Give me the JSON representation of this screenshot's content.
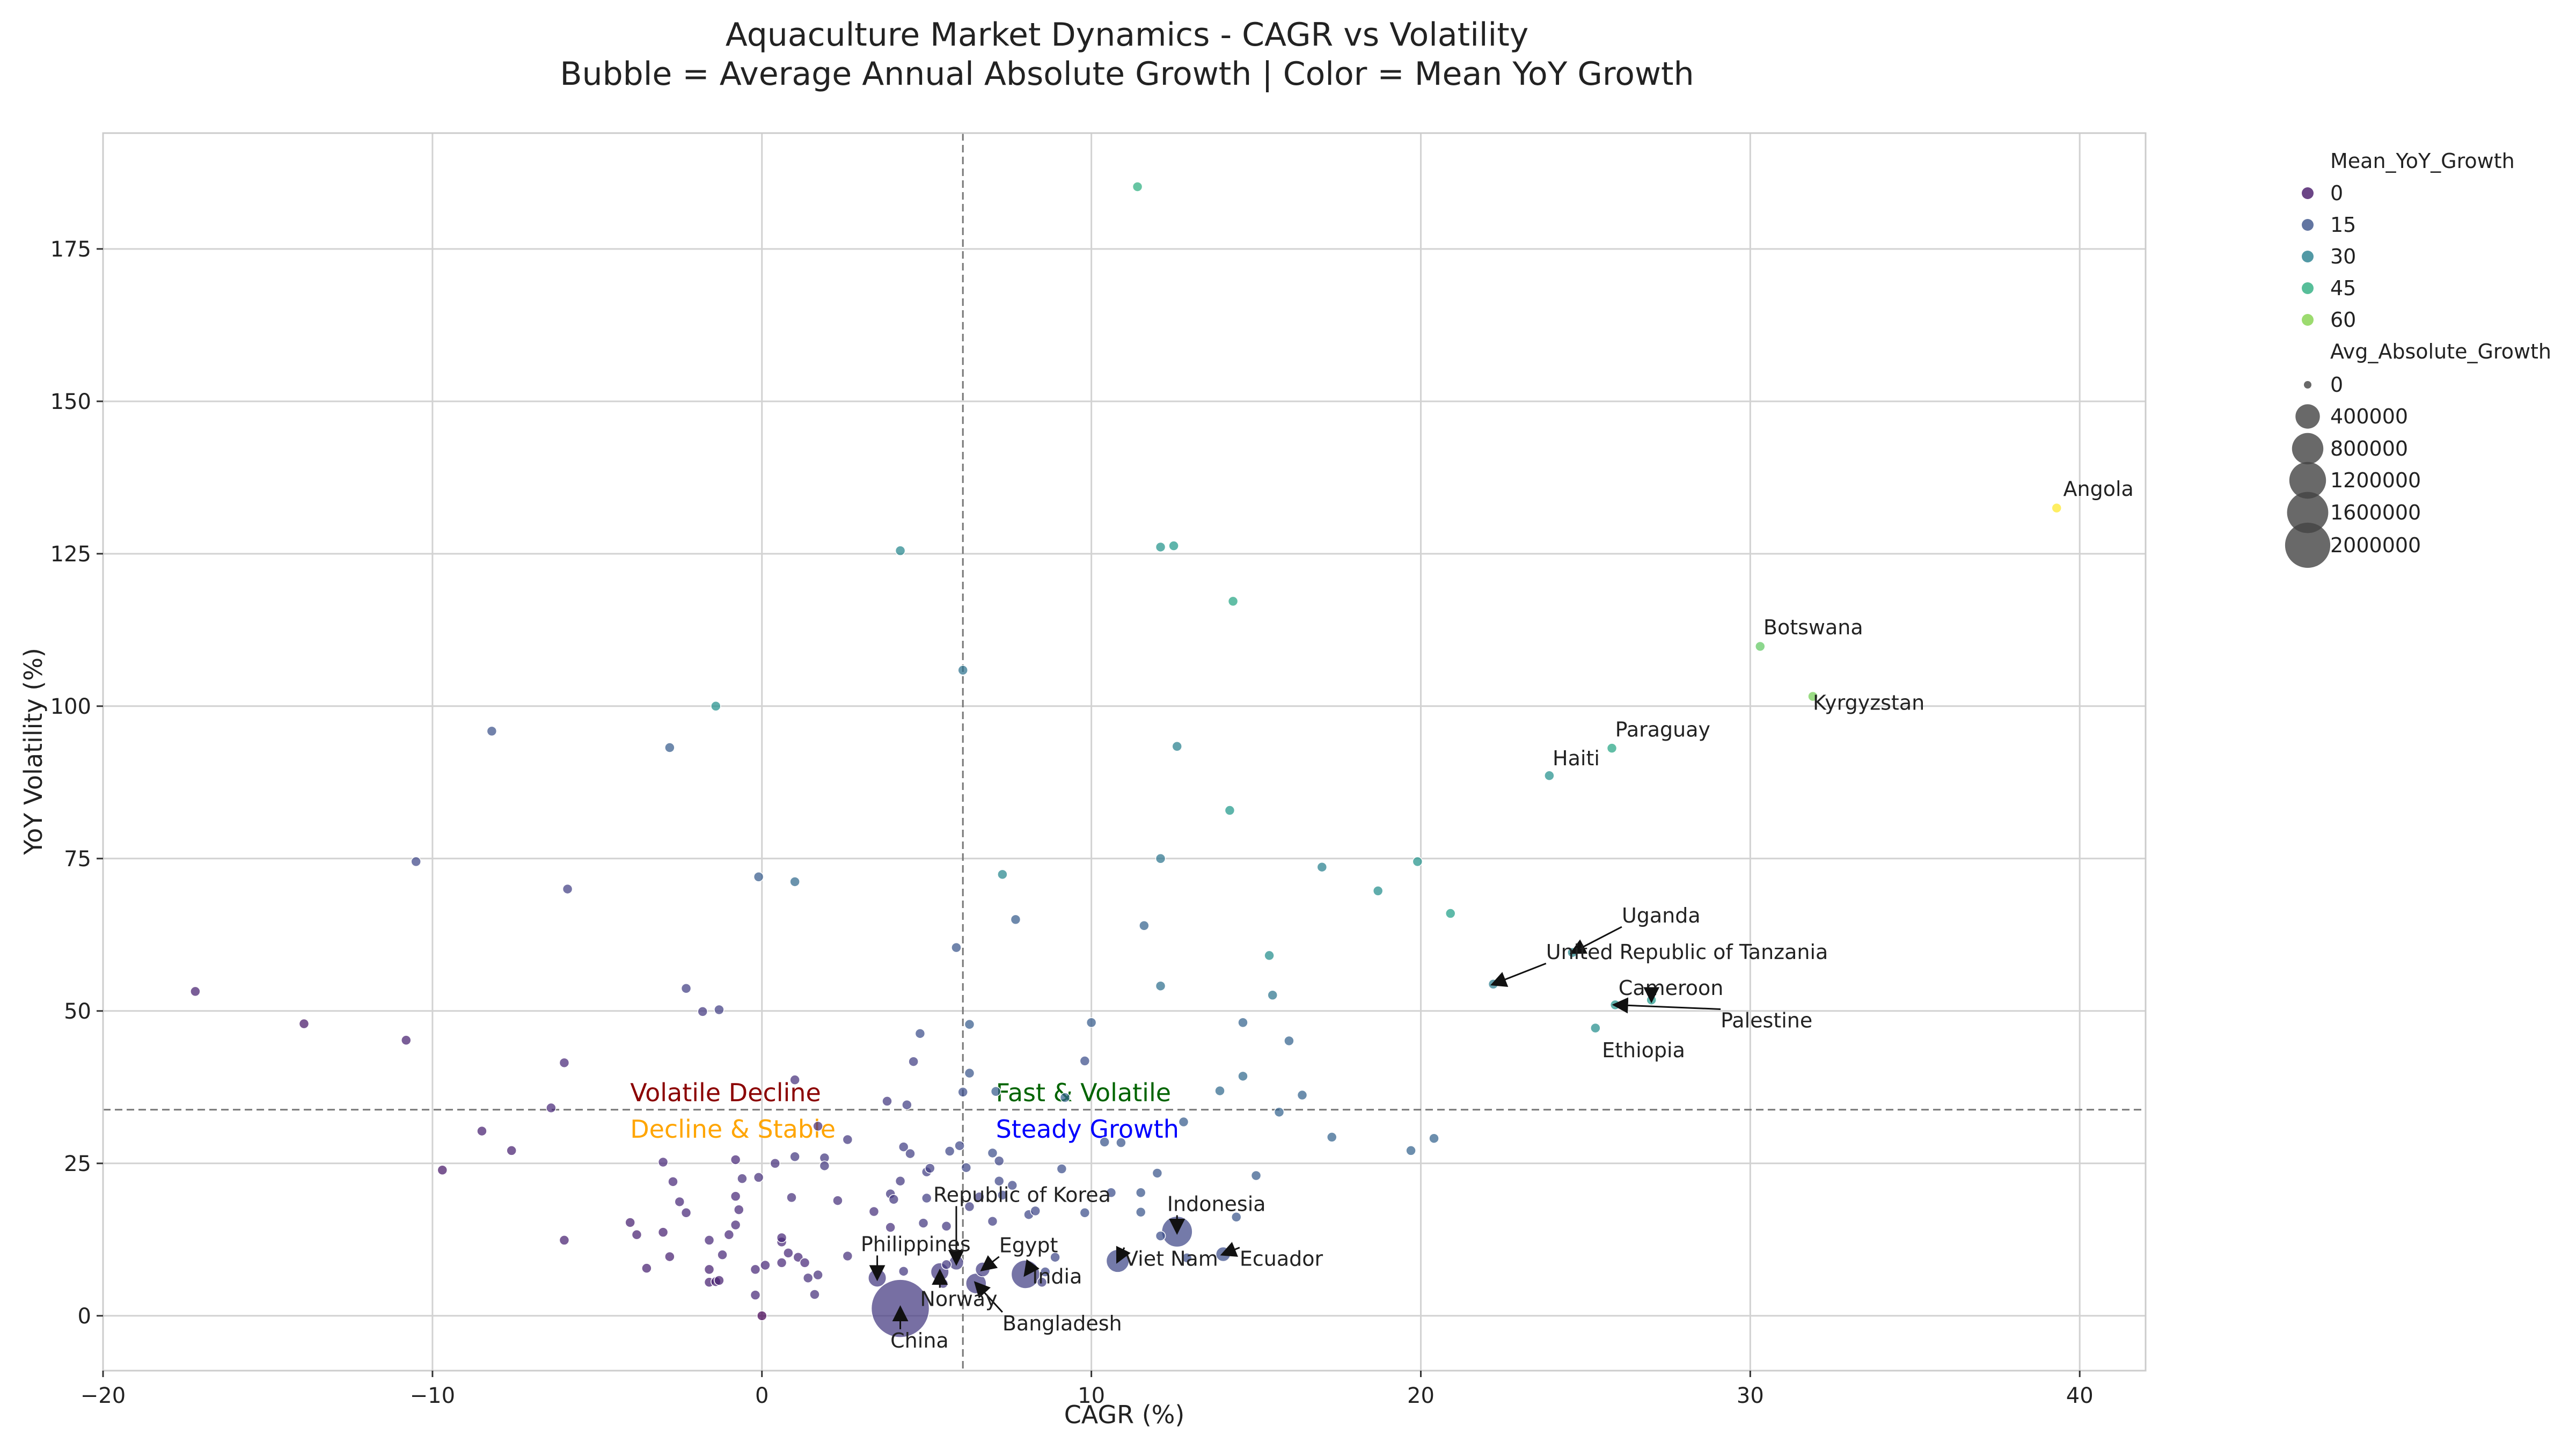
{
  "chart_data": {
    "type": "scatter",
    "title": "Aquaculture Market Dynamics - CAGR vs Volatility",
    "subtitle": "Bubble = Average Annual Absolute Growth | Color = Mean YoY Growth",
    "xlabel": "CAGR (%)",
    "ylabel": "YoY Volatility (%)",
    "xlim": [
      -20,
      42
    ],
    "ylim": [
      -9,
      194
    ],
    "xticks": [
      -20,
      -10,
      0,
      10,
      20,
      30,
      40
    ],
    "yticks": [
      0,
      25,
      50,
      75,
      100,
      125,
      150,
      175
    ],
    "grid": true,
    "reference_lines": {
      "x": 6.1,
      "y": 33.8
    },
    "colormap": "viridis",
    "color_range": [
      -5,
      75
    ],
    "legend": {
      "placement": "outside-right",
      "color_title": "Mean_YoY_Growth",
      "color_entries": [
        0,
        15,
        30,
        45,
        60
      ],
      "size_title": "Avg_Absolute_Growth",
      "size_entries": [
        0,
        400000,
        800000,
        1200000,
        1600000,
        2000000
      ]
    },
    "quadrant_labels": [
      {
        "text": "Volatile Decline",
        "color": "#8b0000"
      },
      {
        "text": "Fast & Volatile",
        "color": "#006400"
      },
      {
        "text": "Decline & Stable",
        "color": "#ffa500"
      },
      {
        "text": "Steady Growth",
        "color": "#0000ff"
      }
    ],
    "points": [
      {
        "x": 39.3,
        "y": 132.5,
        "c": 75,
        "s": 0,
        "label": "Angola"
      },
      {
        "x": 30.3,
        "y": 109.8,
        "c": 55,
        "s": 0,
        "label": "Botswana"
      },
      {
        "x": 31.9,
        "y": 101.6,
        "c": 58,
        "s": 0,
        "label": "Kyrgyzstan"
      },
      {
        "x": 25.8,
        "y": 93.1,
        "c": 42,
        "s": 0,
        "label": "Paraguay"
      },
      {
        "x": 23.9,
        "y": 88.6,
        "c": 35,
        "s": 0,
        "label": "Haiti"
      },
      {
        "x": 24.6,
        "y": 59.6,
        "c": 32,
        "s": 0,
        "label": "Uganda"
      },
      {
        "x": 22.2,
        "y": 54.4,
        "c": 28,
        "s": 0,
        "label": "United Republic of Tanzania"
      },
      {
        "x": 27.0,
        "y": 51.8,
        "c": 38,
        "s": 0,
        "label": "Cameroon"
      },
      {
        "x": 25.9,
        "y": 51.0,
        "c": 36,
        "s": 0,
        "label": "Palestine"
      },
      {
        "x": 25.3,
        "y": 47.2,
        "c": 34,
        "s": 0,
        "label": "Ethiopia"
      },
      {
        "x": 4.2,
        "y": 1.2,
        "c": 8,
        "s": 2000000,
        "label": "China"
      },
      {
        "x": 12.6,
        "y": 13.8,
        "c": 12,
        "s": 380000,
        "label": "Indonesia"
      },
      {
        "x": 8.0,
        "y": 6.8,
        "c": 10,
        "s": 300000,
        "label": "India"
      },
      {
        "x": 10.8,
        "y": 9.0,
        "c": 12,
        "s": 150000,
        "label": "Viet Nam"
      },
      {
        "x": 14.0,
        "y": 10.1,
        "c": 14,
        "s": 20000,
        "label": "Ecuador"
      },
      {
        "x": 6.7,
        "y": 7.6,
        "c": 9,
        "s": 20000,
        "label": "Egypt"
      },
      {
        "x": 6.5,
        "y": 5.3,
        "c": 9,
        "s": 100000,
        "label": "Bangladesh"
      },
      {
        "x": 5.4,
        "y": 7.2,
        "c": 8,
        "s": 60000,
        "label": "Norway"
      },
      {
        "x": 5.9,
        "y": 8.7,
        "c": 9,
        "s": 20000,
        "label": "Republic of Korea"
      },
      {
        "x": 3.5,
        "y": 6.2,
        "c": 8,
        "s": 60000,
        "label": "Philippines"
      },
      {
        "x": 11.4,
        "y": 185.2,
        "c": 45,
        "s": 0
      },
      {
        "x": 4.2,
        "y": 125.5,
        "c": 32,
        "s": 0
      },
      {
        "x": 12.1,
        "y": 126.1,
        "c": 36,
        "s": 0
      },
      {
        "x": 12.5,
        "y": 126.3,
        "c": 38,
        "s": 0
      },
      {
        "x": 14.3,
        "y": 117.2,
        "c": 42,
        "s": 0
      },
      {
        "x": 6.1,
        "y": 105.9,
        "c": 25,
        "s": 0
      },
      {
        "x": -8.2,
        "y": 95.9,
        "c": 15,
        "s": 0
      },
      {
        "x": -2.8,
        "y": 93.2,
        "c": 18,
        "s": 0
      },
      {
        "x": -1.4,
        "y": 100.0,
        "c": 35,
        "s": 0
      },
      {
        "x": 12.6,
        "y": 93.4,
        "c": 30,
        "s": 0
      },
      {
        "x": 14.2,
        "y": 82.9,
        "c": 38,
        "s": 0
      },
      {
        "x": -10.5,
        "y": 74.5,
        "c": 12,
        "s": 0
      },
      {
        "x": -5.9,
        "y": 70.0,
        "c": 10,
        "s": 0
      },
      {
        "x": -0.1,
        "y": 72.0,
        "c": 18,
        "s": 0
      },
      {
        "x": 1.0,
        "y": 71.2,
        "c": 22,
        "s": 0
      },
      {
        "x": 7.3,
        "y": 72.4,
        "c": 32,
        "s": 0
      },
      {
        "x": 12.1,
        "y": 75.0,
        "c": 26,
        "s": 0
      },
      {
        "x": 17.0,
        "y": 73.6,
        "c": 30,
        "s": 0
      },
      {
        "x": 19.9,
        "y": 74.5,
        "c": 36,
        "s": 0
      },
      {
        "x": 18.7,
        "y": 69.7,
        "c": 34,
        "s": 0
      },
      {
        "x": 20.9,
        "y": 66.0,
        "c": 40,
        "s": 0
      },
      {
        "x": 7.7,
        "y": 65.0,
        "c": 18,
        "s": 0
      },
      {
        "x": 11.6,
        "y": 64.0,
        "c": 20,
        "s": 0
      },
      {
        "x": 5.9,
        "y": 60.4,
        "c": 16,
        "s": 0
      },
      {
        "x": 15.4,
        "y": 59.1,
        "c": 34,
        "s": 0
      },
      {
        "x": 12.1,
        "y": 54.1,
        "c": 24,
        "s": 0
      },
      {
        "x": 15.5,
        "y": 52.6,
        "c": 26,
        "s": 0
      },
      {
        "x": -17.2,
        "y": 53.2,
        "c": 2,
        "s": 0
      },
      {
        "x": -13.9,
        "y": 47.9,
        "c": 0,
        "s": 0
      },
      {
        "x": -10.8,
        "y": 45.2,
        "c": 2,
        "s": 0
      },
      {
        "x": -2.3,
        "y": 53.7,
        "c": 10,
        "s": 0
      },
      {
        "x": -1.8,
        "y": 49.9,
        "c": 8,
        "s": 0
      },
      {
        "x": -1.3,
        "y": 50.2,
        "c": 10,
        "s": 0
      },
      {
        "x": -6.0,
        "y": 41.5,
        "c": 4,
        "s": 0
      },
      {
        "x": 4.8,
        "y": 46.3,
        "c": 14,
        "s": 0
      },
      {
        "x": 6.3,
        "y": 47.8,
        "c": 18,
        "s": 0
      },
      {
        "x": 10.0,
        "y": 48.1,
        "c": 18,
        "s": 0
      },
      {
        "x": 14.6,
        "y": 48.1,
        "c": 20,
        "s": 0
      },
      {
        "x": 16.0,
        "y": 45.1,
        "c": 20,
        "s": 0
      },
      {
        "x": 4.6,
        "y": 41.7,
        "c": 10,
        "s": 0
      },
      {
        "x": 9.8,
        "y": 41.8,
        "c": 14,
        "s": 0
      },
      {
        "x": 6.3,
        "y": 39.8,
        "c": 16,
        "s": 0
      },
      {
        "x": 14.6,
        "y": 39.3,
        "c": 22,
        "s": 0
      },
      {
        "x": 1.0,
        "y": 38.7,
        "c": 6,
        "s": 0
      },
      {
        "x": 13.9,
        "y": 36.9,
        "c": 22,
        "s": 0
      },
      {
        "x": 16.4,
        "y": 36.2,
        "c": 20,
        "s": 0
      },
      {
        "x": -6.4,
        "y": 34.1,
        "c": 4,
        "s": 0
      },
      {
        "x": 3.8,
        "y": 35.2,
        "c": 8,
        "s": 0
      },
      {
        "x": 4.4,
        "y": 34.6,
        "c": 10,
        "s": 0
      },
      {
        "x": 6.1,
        "y": 36.7,
        "c": 14,
        "s": 0
      },
      {
        "x": 7.1,
        "y": 36.8,
        "c": 18,
        "s": 0
      },
      {
        "x": 9.2,
        "y": 35.8,
        "c": 20,
        "s": 0
      },
      {
        "x": 15.7,
        "y": 33.4,
        "c": 20,
        "s": 0
      },
      {
        "x": -8.5,
        "y": 30.3,
        "c": 2,
        "s": 0
      },
      {
        "x": -7.6,
        "y": 27.1,
        "c": 2,
        "s": 0
      },
      {
        "x": -9.7,
        "y": 23.9,
        "c": 0,
        "s": 0
      },
      {
        "x": 1.7,
        "y": 31.1,
        "c": 6,
        "s": 0
      },
      {
        "x": 2.6,
        "y": 28.9,
        "c": 8,
        "s": 0
      },
      {
        "x": 4.3,
        "y": 27.7,
        "c": 10,
        "s": 0
      },
      {
        "x": 5.7,
        "y": 27.0,
        "c": 12,
        "s": 0
      },
      {
        "x": 6.0,
        "y": 27.9,
        "c": 12,
        "s": 0
      },
      {
        "x": 7.0,
        "y": 26.7,
        "c": 14,
        "s": 0
      },
      {
        "x": 10.4,
        "y": 28.5,
        "c": 16,
        "s": 0
      },
      {
        "x": 10.9,
        "y": 28.4,
        "c": 16,
        "s": 0
      },
      {
        "x": 12.8,
        "y": 31.8,
        "c": 18,
        "s": 0
      },
      {
        "x": 17.3,
        "y": 29.3,
        "c": 20,
        "s": 0
      },
      {
        "x": 19.7,
        "y": 27.1,
        "c": 20,
        "s": 0
      },
      {
        "x": 20.4,
        "y": 29.1,
        "c": 20,
        "s": 0
      },
      {
        "x": 15.0,
        "y": 23.0,
        "c": 18,
        "s": 0
      },
      {
        "x": -3.0,
        "y": 25.2,
        "c": 4,
        "s": 0
      },
      {
        "x": -2.7,
        "y": 22.0,
        "c": 4,
        "s": 0
      },
      {
        "x": -0.8,
        "y": 25.6,
        "c": 4,
        "s": 0
      },
      {
        "x": -0.6,
        "y": 22.5,
        "c": 6,
        "s": 0
      },
      {
        "x": -0.1,
        "y": 22.7,
        "c": 6,
        "s": 0
      },
      {
        "x": 0.4,
        "y": 25.0,
        "c": 6,
        "s": 0
      },
      {
        "x": 1.0,
        "y": 26.1,
        "c": 8,
        "s": 0
      },
      {
        "x": 1.9,
        "y": 25.9,
        "c": 8,
        "s": 0
      },
      {
        "x": 1.9,
        "y": 24.6,
        "c": 8,
        "s": 0
      },
      {
        "x": 4.5,
        "y": 26.6,
        "c": 10,
        "s": 0
      },
      {
        "x": 5.0,
        "y": 23.6,
        "c": 10,
        "s": 0
      },
      {
        "x": 5.1,
        "y": 24.2,
        "c": 10,
        "s": 0
      },
      {
        "x": 6.2,
        "y": 24.3,
        "c": 12,
        "s": 0
      },
      {
        "x": 7.2,
        "y": 25.4,
        "c": 12,
        "s": 0
      },
      {
        "x": 9.1,
        "y": 24.1,
        "c": 14,
        "s": 0
      },
      {
        "x": 12.0,
        "y": 23.4,
        "c": 16,
        "s": 0
      },
      {
        "x": -2.5,
        "y": 18.7,
        "c": 4,
        "s": 0
      },
      {
        "x": -2.3,
        "y": 16.9,
        "c": 4,
        "s": 0
      },
      {
        "x": -0.8,
        "y": 19.6,
        "c": 4,
        "s": 0
      },
      {
        "x": -0.7,
        "y": 17.4,
        "c": 4,
        "s": 0
      },
      {
        "x": 0.9,
        "y": 19.4,
        "c": 6,
        "s": 0
      },
      {
        "x": 2.3,
        "y": 18.9,
        "c": 6,
        "s": 0
      },
      {
        "x": 3.4,
        "y": 17.1,
        "c": 6,
        "s": 0
      },
      {
        "x": 3.9,
        "y": 20.0,
        "c": 8,
        "s": 0
      },
      {
        "x": 4.0,
        "y": 19.1,
        "c": 8,
        "s": 0
      },
      {
        "x": 4.2,
        "y": 22.1,
        "c": 8,
        "s": 0
      },
      {
        "x": 5.0,
        "y": 19.3,
        "c": 10,
        "s": 0
      },
      {
        "x": 6.3,
        "y": 17.9,
        "c": 10,
        "s": 0
      },
      {
        "x": 6.6,
        "y": 19.5,
        "c": 10,
        "s": 0
      },
      {
        "x": 7.2,
        "y": 22.1,
        "c": 12,
        "s": 0
      },
      {
        "x": 7.3,
        "y": 19.8,
        "c": 12,
        "s": 0
      },
      {
        "x": 7.6,
        "y": 21.4,
        "c": 12,
        "s": 0
      },
      {
        "x": 8.1,
        "y": 16.6,
        "c": 12,
        "s": 0
      },
      {
        "x": 8.3,
        "y": 17.2,
        "c": 12,
        "s": 0
      },
      {
        "x": 9.8,
        "y": 16.9,
        "c": 14,
        "s": 0
      },
      {
        "x": 10.6,
        "y": 20.2,
        "c": 14,
        "s": 0
      },
      {
        "x": 11.5,
        "y": 20.2,
        "c": 16,
        "s": 0
      },
      {
        "x": 11.5,
        "y": 17.0,
        "c": 16,
        "s": 0
      },
      {
        "x": 14.4,
        "y": 16.2,
        "c": 16,
        "s": 0
      },
      {
        "x": -4.0,
        "y": 15.3,
        "c": 2,
        "s": 0
      },
      {
        "x": -3.8,
        "y": 13.3,
        "c": 2,
        "s": 0
      },
      {
        "x": -3.0,
        "y": 13.7,
        "c": 2,
        "s": 0
      },
      {
        "x": -1.6,
        "y": 12.4,
        "c": 4,
        "s": 0
      },
      {
        "x": -1.0,
        "y": 13.3,
        "c": 4,
        "s": 0
      },
      {
        "x": -0.8,
        "y": 14.9,
        "c": 4,
        "s": 0
      },
      {
        "x": 0.6,
        "y": 12.1,
        "c": 4,
        "s": 0
      },
      {
        "x": 0.6,
        "y": 12.8,
        "c": 4,
        "s": 0
      },
      {
        "x": 3.9,
        "y": 14.5,
        "c": 6,
        "s": 0
      },
      {
        "x": 4.9,
        "y": 15.2,
        "c": 8,
        "s": 0
      },
      {
        "x": 5.6,
        "y": 14.7,
        "c": 8,
        "s": 0
      },
      {
        "x": 7.0,
        "y": 15.5,
        "c": 10,
        "s": 0
      },
      {
        "x": -6.0,
        "y": 12.4,
        "c": 2,
        "s": 0
      },
      {
        "x": -3.5,
        "y": 7.8,
        "c": 2,
        "s": 0
      },
      {
        "x": -2.8,
        "y": 9.7,
        "c": 2,
        "s": 0
      },
      {
        "x": -1.6,
        "y": 5.5,
        "c": 2,
        "s": 0
      },
      {
        "x": -1.6,
        "y": 7.6,
        "c": 2,
        "s": 0
      },
      {
        "x": -1.4,
        "y": 5.6,
        "c": 2,
        "s": 0
      },
      {
        "x": -1.3,
        "y": 5.8,
        "c": 2,
        "s": 0
      },
      {
        "x": -1.2,
        "y": 10.0,
        "c": 4,
        "s": 0
      },
      {
        "x": -0.2,
        "y": 7.6,
        "c": 4,
        "s": 0
      },
      {
        "x": -0.2,
        "y": 3.4,
        "c": 4,
        "s": 0
      },
      {
        "x": 0.1,
        "y": 8.3,
        "c": 4,
        "s": 0
      },
      {
        "x": 0.6,
        "y": 8.7,
        "c": 4,
        "s": 0
      },
      {
        "x": 0.8,
        "y": 10.3,
        "c": 4,
        "s": 0
      },
      {
        "x": 1.1,
        "y": 9.6,
        "c": 4,
        "s": 0
      },
      {
        "x": 1.3,
        "y": 8.7,
        "c": 4,
        "s": 0
      },
      {
        "x": 1.4,
        "y": 6.2,
        "c": 6,
        "s": 0
      },
      {
        "x": 1.6,
        "y": 3.5,
        "c": 6,
        "s": 0
      },
      {
        "x": 1.7,
        "y": 6.7,
        "c": 6,
        "s": 0
      },
      {
        "x": 2.6,
        "y": 9.8,
        "c": 6,
        "s": 0
      },
      {
        "x": 4.3,
        "y": 7.3,
        "c": 8,
        "s": 0
      },
      {
        "x": 5.5,
        "y": 5.3,
        "c": 8,
        "s": 0
      },
      {
        "x": 5.6,
        "y": 8.4,
        "c": 8,
        "s": 0
      },
      {
        "x": 8.5,
        "y": 5.5,
        "c": 10,
        "s": 0
      },
      {
        "x": 8.6,
        "y": 7.2,
        "c": 12,
        "s": 0
      },
      {
        "x": 8.9,
        "y": 9.6,
        "c": 12,
        "s": 0
      },
      {
        "x": 12.1,
        "y": 13.1,
        "c": 14,
        "s": 0
      },
      {
        "x": 12.9,
        "y": 9.5,
        "c": 14,
        "s": 0
      },
      {
        "x": 0.0,
        "y": 0.0,
        "c": -5,
        "s": 0
      }
    ]
  }
}
